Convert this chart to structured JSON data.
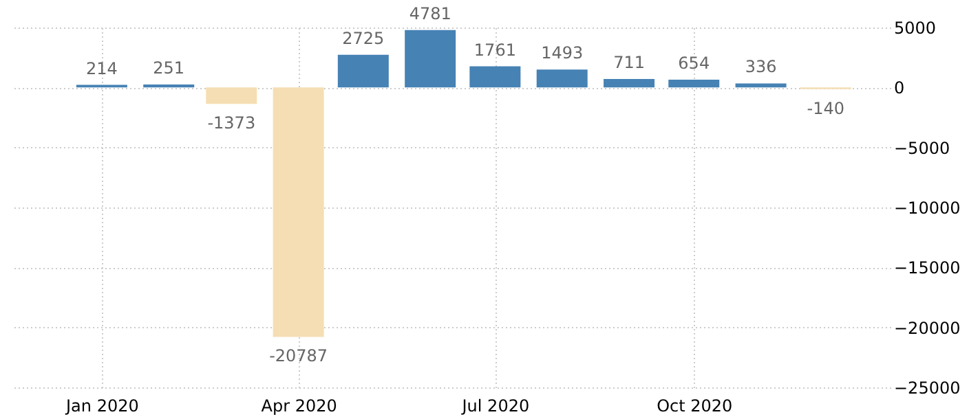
{
  "chart_data": {
    "type": "bar",
    "x": [
      "2020-01",
      "2020-02",
      "2020-03",
      "2020-04",
      "2020-05",
      "2020-06",
      "2020-07",
      "2020-08",
      "2020-09",
      "2020-10",
      "2020-11",
      "2020-12"
    ],
    "values": [
      214,
      251,
      -1373,
      -20787,
      2725,
      4781,
      1761,
      1493,
      711,
      654,
      336,
      -140
    ],
    "colors": [
      "#4682b4",
      "#4682b4",
      "#f5deb3",
      "#f5deb3",
      "#4682b4",
      "#4682b4",
      "#4682b4",
      "#4682b4",
      "#4682b4",
      "#4682b4",
      "#4682b4",
      "#f5deb3"
    ],
    "data_labels": true,
    "xlim": [
      "2019-11-20",
      "2020-12-31"
    ],
    "xticks": [
      {
        "value": "2020-01",
        "label": "Jan 2020"
      },
      {
        "value": "2020-04",
        "label": "Apr 2020"
      },
      {
        "value": "2020-07",
        "label": "Jul 2020"
      },
      {
        "value": "2020-10",
        "label": "Oct 2020"
      }
    ],
    "ylim": [
      -25000,
      5000
    ],
    "yticks": [
      -25000,
      -20000,
      -15000,
      -10000,
      -5000,
      0,
      5000
    ],
    "grid": true
  }
}
